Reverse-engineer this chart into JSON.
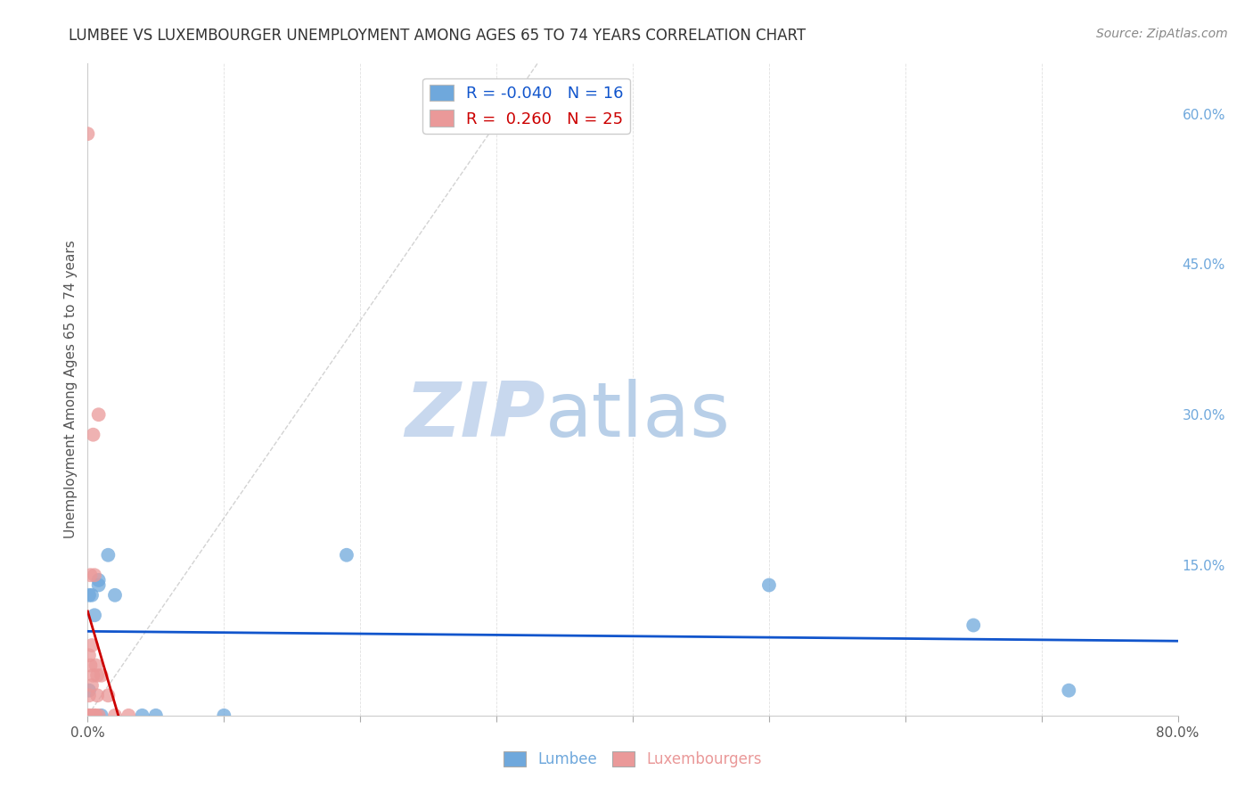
{
  "title": "LUMBEE VS LUXEMBOURGER UNEMPLOYMENT AMONG AGES 65 TO 74 YEARS CORRELATION CHART",
  "source": "Source: ZipAtlas.com",
  "ylabel": "Unemployment Among Ages 65 to 74 years",
  "xlim": [
    0.0,
    0.8
  ],
  "ylim": [
    0.0,
    0.65
  ],
  "xticks": [
    0.0,
    0.1,
    0.2,
    0.3,
    0.4,
    0.5,
    0.6,
    0.7,
    0.8
  ],
  "xticklabels": [
    "0.0%",
    "",
    "",
    "",
    "",
    "",
    "",
    "",
    "80.0%"
  ],
  "ytick_right_vals": [
    0.0,
    0.15,
    0.3,
    0.45,
    0.6
  ],
  "ytick_right_labels": [
    "",
    "15.0%",
    "30.0%",
    "45.0%",
    "60.0%"
  ],
  "lumbee_R": -0.04,
  "lumbee_N": 16,
  "luxembourger_R": 0.26,
  "luxembourger_N": 25,
  "lumbee_color": "#6fa8dc",
  "luxembourger_color": "#ea9999",
  "lumbee_line_color": "#1155cc",
  "luxembourger_line_color": "#cc0000",
  "diagonal_line_color": "#c0c0c0",
  "lumbee_points_x": [
    0.001,
    0.001,
    0.003,
    0.005,
    0.008,
    0.008,
    0.01,
    0.015,
    0.02,
    0.04,
    0.05,
    0.1,
    0.19,
    0.5,
    0.65,
    0.72
  ],
  "lumbee_points_y": [
    0.025,
    0.12,
    0.12,
    0.1,
    0.13,
    0.135,
    0.0,
    0.16,
    0.12,
    0.0,
    0.0,
    0.0,
    0.16,
    0.13,
    0.09,
    0.025
  ],
  "luxembourger_points_x": [
    0.0,
    0.0,
    0.001,
    0.001,
    0.001,
    0.002,
    0.002,
    0.002,
    0.003,
    0.003,
    0.004,
    0.004,
    0.005,
    0.005,
    0.005,
    0.006,
    0.006,
    0.007,
    0.007,
    0.008,
    0.008,
    0.01,
    0.015,
    0.02,
    0.03
  ],
  "luxembourger_points_y": [
    0.58,
    0.0,
    0.0,
    0.02,
    0.06,
    0.05,
    0.14,
    0.0,
    0.03,
    0.07,
    0.28,
    0.04,
    0.0,
    0.14,
    0.0,
    0.0,
    0.05,
    0.02,
    0.04,
    0.0,
    0.3,
    0.04,
    0.02,
    0.0,
    0.0
  ],
  "watermark_text_zip": "ZIP",
  "watermark_text_atlas": "atlas",
  "watermark_color_zip": "#c8d8ee",
  "watermark_color_atlas": "#b8cfe8",
  "background_color": "#ffffff",
  "grid_color": "#e0e0e0",
  "title_fontsize": 12,
  "source_fontsize": 10
}
